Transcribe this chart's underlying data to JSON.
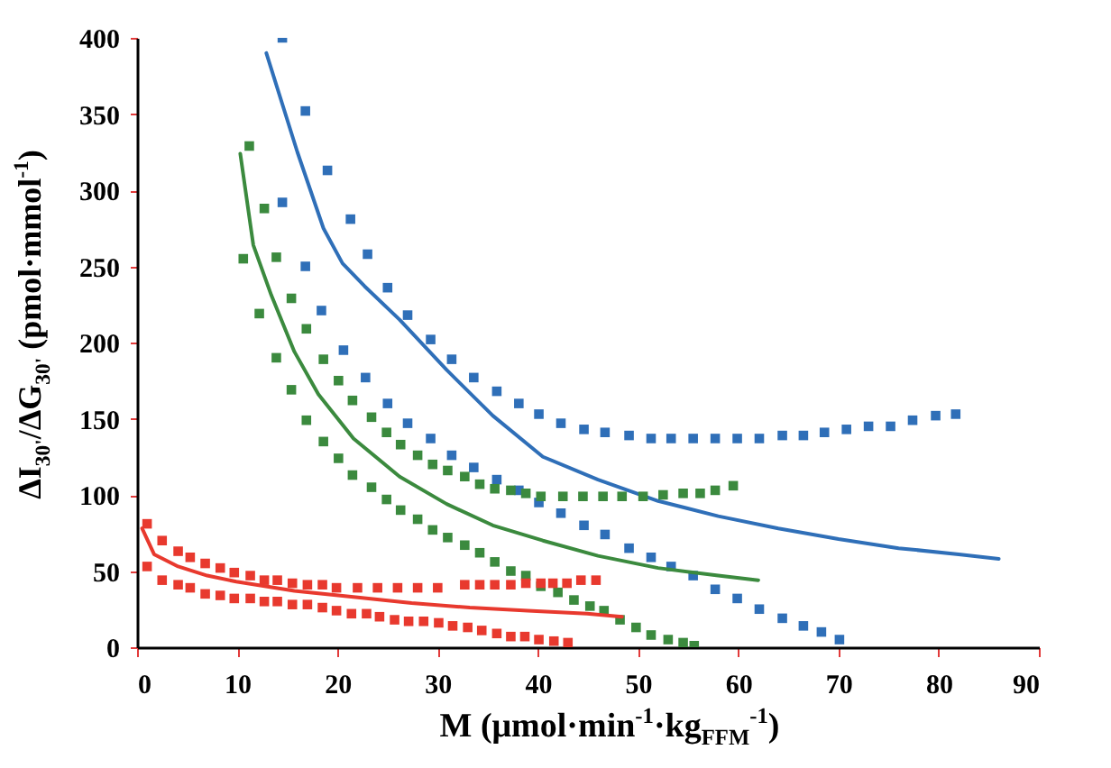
{
  "chart_data": {
    "type": "scatter",
    "xlabel": "M (μmol·min$^{-1}$·kg$_{FFM}$$^{-1}$)",
    "ylabel": "ΔI$_{30'}$/ΔG$_{30'}$ (pmol·mmol$^{-1}$)",
    "xlim": [
      0,
      90
    ],
    "xticks": [
      0,
      10,
      20,
      30,
      40,
      50,
      60,
      70,
      80,
      90
    ],
    "ylim": [
      0,
      400
    ],
    "yticks": [
      0,
      50,
      100,
      150,
      200,
      250,
      300,
      350,
      400
    ],
    "grid": false,
    "series": [
      {
        "marker": "square",
        "color": "#2f6fb8",
        "x": [
          14.5,
          16.8,
          19,
          21.3,
          23,
          25,
          27,
          29.3,
          31.4,
          33.6,
          35.9,
          38.1,
          40.1,
          42.3,
          44.6,
          46.7,
          49.1,
          51.3,
          53.3,
          55.5,
          57.7,
          59.9,
          62.1,
          64.4,
          66.5,
          68.6,
          70.8,
          73,
          75.2,
          77.4,
          79.7,
          81.7
        ],
        "values": [
          400,
          352,
          313,
          281,
          258,
          236,
          218,
          202,
          189,
          177,
          168,
          160,
          153,
          147,
          143,
          141,
          139,
          137,
          137,
          137,
          137,
          137,
          137,
          139,
          139,
          141,
          143,
          145,
          145,
          149,
          152,
          153
        ]
      },
      {
        "marker": "square",
        "color": "#2f6fb8",
        "x": [
          14.5,
          16.8,
          18.4,
          20.6,
          22.8,
          25,
          27,
          29.3,
          31.4,
          33.6,
          35.9,
          38.1,
          40.1,
          42.3,
          44.6,
          46.7,
          49.1,
          51.3,
          53.3,
          55.5,
          57.7,
          59.9,
          62.1,
          64.4,
          66.5,
          68.3,
          70.1
        ],
        "values": [
          292,
          250,
          221,
          195,
          177,
          160,
          147,
          137,
          126,
          118,
          110,
          103,
          95,
          88,
          80,
          74,
          65,
          59,
          53,
          47,
          38,
          32,
          25,
          19,
          14,
          10,
          5
        ]
      },
      {
        "type": "line",
        "marker": "none",
        "line_style": "solid",
        "color": "#2f6fb8",
        "x": [
          12.9,
          16,
          18.6,
          20.5,
          22.7,
          26.2,
          30.9,
          35.5,
          40.5,
          46,
          52,
          58,
          64,
          70,
          76,
          82,
          86
        ],
        "values": [
          390,
          325,
          275,
          252,
          237,
          215,
          182,
          152,
          125,
          110,
          96,
          86,
          78,
          71,
          65,
          61,
          58
        ]
      },
      {
        "marker": "square",
        "color": "#3b8a3e",
        "x": [
          11.2,
          12.7,
          13.9,
          15.4,
          16.9,
          18.6,
          20.1,
          21.5,
          23.4,
          24.9,
          26.3,
          28,
          29.5,
          31,
          32.7,
          34.2,
          35.7,
          37.3,
          38.8,
          40.3,
          42.5,
          44.5,
          46.5,
          48.4,
          50.5,
          52.5,
          54.5,
          56.2,
          57.7,
          59.5
        ],
        "values": [
          329,
          288,
          256,
          229,
          209,
          189,
          175,
          162,
          151,
          141,
          133,
          126,
          120,
          116,
          112,
          107,
          104,
          103,
          101,
          99,
          99,
          99,
          99,
          99,
          99,
          100,
          101,
          101,
          103,
          106
        ]
      },
      {
        "marker": "square",
        "color": "#3b8a3e",
        "x": [
          10.6,
          12.2,
          13.9,
          15.4,
          16.9,
          18.6,
          20.1,
          21.5,
          23.4,
          24.9,
          26.3,
          28,
          29.5,
          31,
          32.7,
          34.2,
          35.7,
          37.3,
          38.8,
          40.3,
          42,
          43.6,
          45.2,
          46.6,
          48.2,
          49.8,
          51.3,
          53,
          54.5,
          55.6
        ],
        "values": [
          255,
          219,
          190,
          169,
          149,
          135,
          124,
          113,
          105,
          97,
          90,
          84,
          77,
          72,
          67,
          62,
          56,
          50,
          47,
          40,
          36,
          31,
          27,
          24,
          18,
          13,
          8,
          5,
          3,
          1
        ]
      },
      {
        "type": "line",
        "marker": "none",
        "line_style": "solid",
        "color": "#3b8a3e",
        "x": [
          10.3,
          11.6,
          13.4,
          15.7,
          18.1,
          21.6,
          26.2,
          30.9,
          35.5,
          40.5,
          46,
          52,
          58,
          62
        ],
        "values": [
          324,
          264,
          231,
          194,
          166,
          137,
          112,
          94,
          80,
          70,
          60,
          52,
          47,
          44
        ]
      },
      {
        "marker": "square",
        "color": "#e8392e",
        "x": [
          1,
          2.5,
          4.1,
          5.3,
          6.8,
          8.3,
          9.7,
          11.3,
          12.7,
          14,
          15.5,
          17,
          18.5,
          19.9,
          22,
          24,
          26,
          28,
          30,
          32.7,
          34.2,
          35.7,
          37.3,
          38.8,
          40.3,
          41.5,
          42.9,
          44.3,
          45.8
        ],
        "values": [
          81,
          70,
          63,
          59,
          55,
          52,
          49,
          47,
          44,
          44,
          42,
          41,
          41,
          39,
          39,
          39,
          39,
          39,
          39,
          41,
          41,
          41,
          41,
          42,
          42,
          42,
          42,
          44,
          44
        ]
      },
      {
        "marker": "square",
        "color": "#e8392e",
        "x": [
          1,
          2.5,
          4.1,
          5.3,
          6.8,
          8.3,
          9.7,
          11.3,
          12.7,
          14,
          15.5,
          17,
          18.5,
          19.9,
          21.4,
          22.9,
          24.2,
          25.7,
          27.1,
          28.6,
          30.1,
          31.5,
          33,
          34.4,
          35.9,
          37.3,
          38.7,
          40.1,
          41.6,
          43
        ],
        "values": [
          53,
          44,
          41,
          39,
          35,
          34,
          32,
          32,
          30,
          30,
          28,
          28,
          26,
          24,
          22,
          22,
          20,
          18,
          17,
          17,
          16,
          14,
          13,
          11,
          9,
          7,
          7,
          5,
          4,
          3
        ]
      },
      {
        "type": "line",
        "marker": "none",
        "line_style": "solid",
        "color": "#e8392e",
        "x": [
          0.5,
          1.7,
          4.1,
          7,
          9.9,
          15.7,
          21.6,
          27.4,
          33.2,
          39,
          44.9,
          48.4
        ],
        "values": [
          78,
          61,
          53,
          47,
          43,
          37,
          33,
          29,
          26,
          24,
          22,
          20
        ]
      }
    ]
  }
}
